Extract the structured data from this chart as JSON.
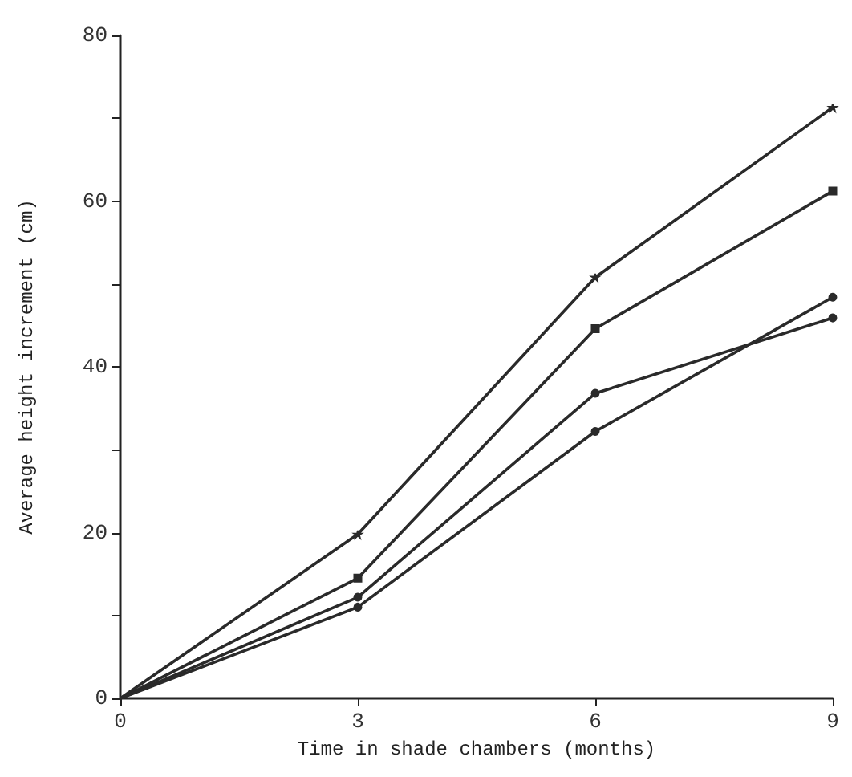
{
  "chart_data": {
    "type": "line",
    "xlabel": "Time in shade chambers (months)",
    "ylabel": "Average height increment (cm)",
    "x": [
      0,
      3,
      6,
      9
    ],
    "series": [
      {
        "color": "#2a2a2a",
        "marker": "star",
        "values": [
          0,
          19.8,
          50.8,
          71.3
        ]
      },
      {
        "color": "#2a2a2a",
        "marker": "square",
        "values": [
          0,
          14.5,
          44.6,
          61.2
        ]
      },
      {
        "color": "#2a2a2a",
        "marker": "circle",
        "values": [
          0,
          12.2,
          36.8,
          45.9
        ]
      },
      {
        "color": "#2a2a2a",
        "marker": "circle",
        "values": [
          0,
          11,
          32.2,
          48.4
        ]
      }
    ],
    "xlim": [
      0,
      9
    ],
    "xticks": [
      0,
      3,
      6,
      9
    ],
    "ylim": [
      0,
      80
    ],
    "yticks": [
      0,
      {
        "value": 10,
        "label": null
      },
      20,
      {
        "value": 30,
        "label": null
      },
      40,
      {
        "value": 50,
        "label": null
      },
      60,
      {
        "value": 70,
        "label": null
      },
      80
    ],
    "grid": false,
    "line_style": "solid"
  }
}
